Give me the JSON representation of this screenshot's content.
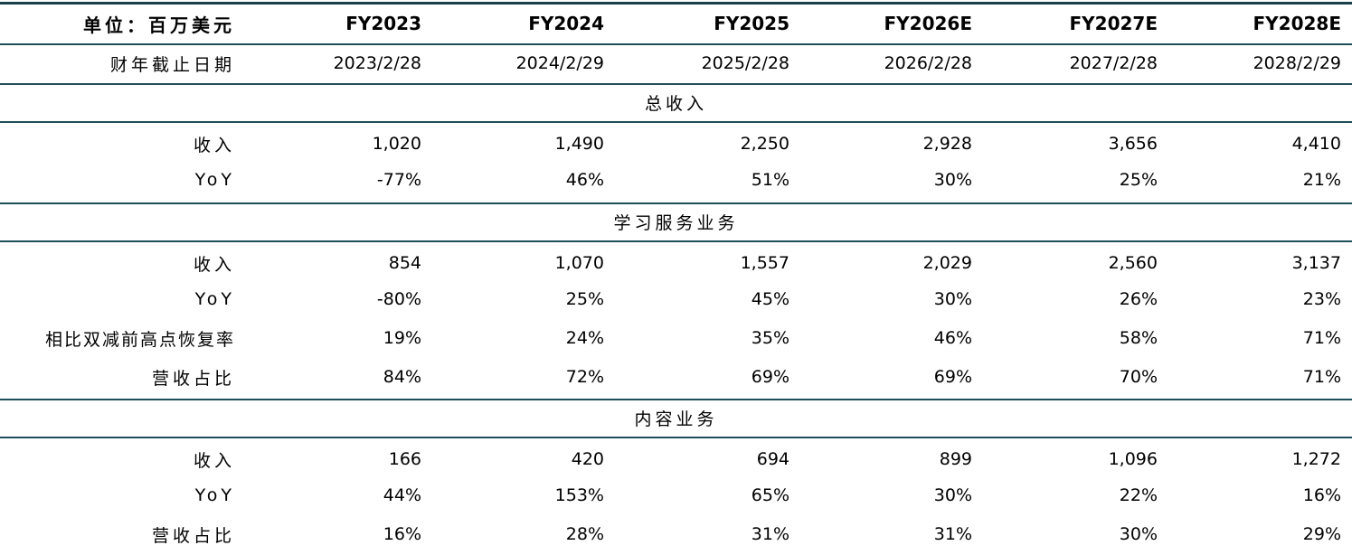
{
  "header": {
    "unit_label": "单位：百万美元",
    "years": [
      "FY2023",
      "FY2024",
      "FY2025",
      "FY2026E",
      "FY2027E",
      "FY2028E"
    ]
  },
  "fiscal_end": {
    "label": "财年截止日期",
    "dates": [
      "2023/2/28",
      "2024/2/29",
      "2025/2/28",
      "2026/2/28",
      "2027/2/28",
      "2028/2/29"
    ]
  },
  "sections": [
    {
      "title": "总收入",
      "rows": [
        {
          "label": "收入",
          "values": [
            "1,020",
            "1,490",
            "2,250",
            "2,928",
            "3,656",
            "4,410"
          ]
        },
        {
          "label": "YoY",
          "values": [
            "-77%",
            "46%",
            "51%",
            "30%",
            "25%",
            "21%"
          ]
        }
      ]
    },
    {
      "title": "学习服务业务",
      "rows": [
        {
          "label": "收入",
          "values": [
            "854",
            "1,070",
            "1,557",
            "2,029",
            "2,560",
            "3,137"
          ]
        },
        {
          "label": "YoY",
          "values": [
            "-80%",
            "25%",
            "45%",
            "30%",
            "26%",
            "23%"
          ]
        },
        {
          "label": "相比双减前高点恢复率",
          "values": [
            "19%",
            "24%",
            "35%",
            "46%",
            "58%",
            "71%"
          ]
        },
        {
          "label": "营收占比",
          "values": [
            "84%",
            "72%",
            "69%",
            "69%",
            "70%",
            "71%"
          ]
        }
      ]
    },
    {
      "title": "内容业务",
      "rows": [
        {
          "label": "收入",
          "values": [
            "166",
            "420",
            "694",
            "899",
            "1,096",
            "1,272"
          ]
        },
        {
          "label": "YoY",
          "values": [
            "44%",
            "153%",
            "65%",
            "30%",
            "22%",
            "16%"
          ]
        },
        {
          "label": "营收占比",
          "values": [
            "16%",
            "28%",
            "31%",
            "31%",
            "30%",
            "29%"
          ]
        }
      ]
    }
  ],
  "colors": {
    "rule": "#1f4e5a",
    "text": "#000000",
    "background": "#ffffff"
  }
}
